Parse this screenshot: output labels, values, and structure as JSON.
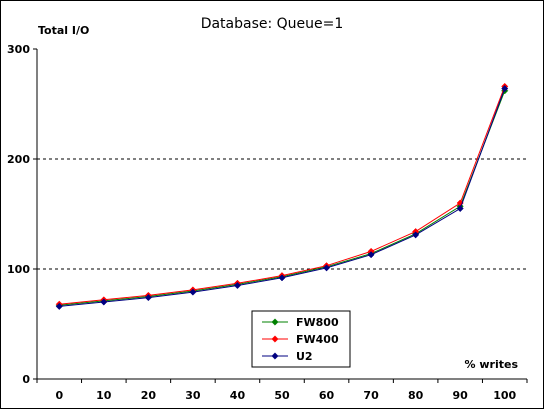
{
  "chart_data": {
    "type": "line",
    "title": "Database: Queue=1",
    "ylabel": "Total I/O",
    "xlabel": "% writes",
    "x": [
      0,
      10,
      20,
      30,
      40,
      50,
      60,
      70,
      80,
      90,
      100
    ],
    "xlim": [
      0,
      100
    ],
    "ylim": [
      0,
      300
    ],
    "yticks": [
      0,
      100,
      200,
      300
    ],
    "grid": "horizontal dashed at 100 and 200",
    "legend_position": "bottom-center",
    "series": [
      {
        "name": "FW800",
        "color": "#008000",
        "values": [
          67,
          71,
          75,
          80,
          86,
          93,
          102,
          114,
          132,
          157,
          262
        ]
      },
      {
        "name": "FW400",
        "color": "#ff0000",
        "values": [
          68,
          72,
          76,
          81,
          87,
          94,
          103,
          116,
          134,
          160,
          266
        ]
      },
      {
        "name": "U2",
        "color": "#000080",
        "values": [
          66,
          70,
          74,
          79,
          85,
          92,
          101,
          113,
          131,
          155,
          264
        ]
      }
    ]
  }
}
